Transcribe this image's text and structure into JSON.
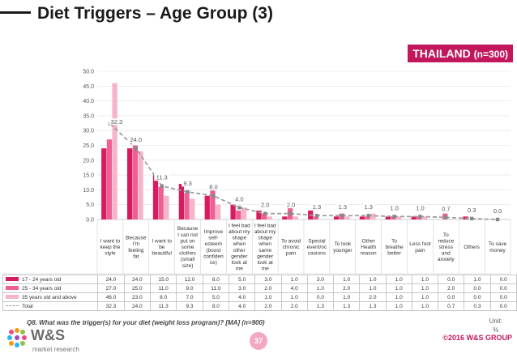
{
  "header": {
    "title": "Diet Triggers – Age Group (3)"
  },
  "region": {
    "country": "THAILAND",
    "sample": "(n=300)"
  },
  "colors": {
    "s1": "#d81b60",
    "s2": "#ee5f93",
    "s3": "#f6b3c9",
    "total": "#9e9e9e",
    "accent": "#c2185b"
  },
  "chart_data": {
    "type": "bar",
    "title": "Diet Triggers – Age Group (3)",
    "ylim": [
      0,
      50
    ],
    "yticks": [
      "0.0",
      "5.0",
      "10.0",
      "15.0",
      "20.0",
      "25.0",
      "30.0",
      "35.0",
      "40.0",
      "45.0",
      "50.0"
    ],
    "ytick_values": [
      0,
      5,
      10,
      15,
      20,
      25,
      30,
      35,
      40,
      45,
      50
    ],
    "categories": [
      "I want to keep the style",
      "Because I'm feeling fat",
      "I want to be beautiful",
      "Because I can not put on some clothes (small size)",
      "Improve self-esteem (boost confidence)",
      "I feel bad about my shape when other gender look at me",
      "I feel bad about my shape when same gender look at me",
      "To avoid chronic pain",
      "Special event/occasions",
      "To look younger",
      "Other Health reason",
      "To breathe better",
      "Less foot pain",
      "To reduce stress and anxiety",
      "Others",
      "To save money"
    ],
    "category_lines": [
      [
        "I want to",
        "keep the",
        "style"
      ],
      [
        "Because",
        "I'm",
        "feeling",
        "fat"
      ],
      [
        "I want to",
        "be",
        "beautiful"
      ],
      [
        "Because",
        "I can not",
        "put on",
        "some",
        "clothes",
        "(small",
        "size)"
      ],
      [
        "Improve",
        "self-",
        "esteem",
        "(boost",
        "confiden",
        "ce)"
      ],
      [
        "I feel bad",
        "about my",
        "shape",
        "when",
        "other",
        "gender",
        "look at",
        "me"
      ],
      [
        "I feel bad",
        "about my",
        "shape",
        "when",
        "same",
        "gender",
        "look at",
        "me"
      ],
      [
        "To avoid",
        "chronic",
        "pain"
      ],
      [
        "Special",
        "event/oc",
        "casions"
      ],
      [
        "To look",
        "younger"
      ],
      [
        "Other",
        "Health",
        "reason"
      ],
      [
        "To",
        "breathe",
        "better"
      ],
      [
        "Less foot",
        "pain"
      ],
      [
        "To",
        "reduce",
        "stress",
        "and",
        "anxiety"
      ],
      [
        "Others"
      ],
      [
        "To save",
        "money"
      ]
    ],
    "series": [
      {
        "name": "17 - 24 years old",
        "values": [
          24.0,
          24.0,
          15.0,
          12.0,
          8.0,
          5.0,
          3.0,
          1.0,
          3.0,
          1.0,
          1.0,
          1.0,
          1.0,
          0.0,
          1.0,
          0.0
        ],
        "display": [
          "24.0",
          "24.0",
          "15.0",
          "12.0",
          "8.0",
          "5.0",
          "3.0",
          "1.0",
          "3.0",
          "1.0",
          "1.0",
          "1.0",
          "1.0",
          "0.0",
          "1.0",
          "0.0"
        ]
      },
      {
        "name": "25 - 34 years old",
        "values": [
          27.0,
          25.0,
          11.0,
          9.0,
          11.0,
          3.0,
          2.0,
          4.0,
          1.0,
          2.0,
          1.0,
          1.0,
          1.0,
          2.0,
          0.0,
          0.0
        ],
        "display": [
          "27.0",
          "25.0",
          "11.0",
          "9.0",
          "11.0",
          "3.0",
          "2.0",
          "4.0",
          "1.0",
          "2.0",
          "1.0",
          "1.0",
          "1.0",
          "2.0",
          "0.0",
          "0.0"
        ]
      },
      {
        "name": "35 years old and above",
        "values": [
          46.0,
          23.0,
          8.0,
          7.0,
          5.0,
          4.0,
          1.0,
          1.0,
          0.0,
          1.0,
          2.0,
          1.0,
          1.0,
          0.0,
          0.0,
          0.0
        ],
        "display": [
          "46.0",
          "23.0",
          "8.0",
          "7.0",
          "5.0",
          "4.0",
          "1.0",
          "1.0",
          "0.0",
          "1.0",
          "2.0",
          "1.0",
          "1.0",
          "0.0",
          "0.0",
          "0.0"
        ]
      },
      {
        "name": "Total",
        "values": [
          32.3,
          24.0,
          11.3,
          9.3,
          8.0,
          4.0,
          2.0,
          2.0,
          1.3,
          1.3,
          1.3,
          1.0,
          1.0,
          0.7,
          0.3,
          0.0
        ],
        "display": [
          "32.3",
          "24.0",
          "11.3",
          "9.3",
          "8.0",
          "4.0",
          "2.0",
          "2.0",
          "1.3",
          "1.3",
          "1.3",
          "1.0",
          "1.0",
          "0.7",
          "0.3",
          "0.0"
        ]
      }
    ],
    "xlabel": "",
    "ylabel": "",
    "grid": true
  },
  "footer": {
    "question": "Q8. What was the trigger(s) for your diet (weight loss program)? [MA] (n=900)",
    "unit_label": "Unit:",
    "unit_value": "%",
    "page_number": "37",
    "copyright": "©2016 W&S GROUP",
    "logo_brand": "W&S",
    "logo_sub": "market research"
  }
}
